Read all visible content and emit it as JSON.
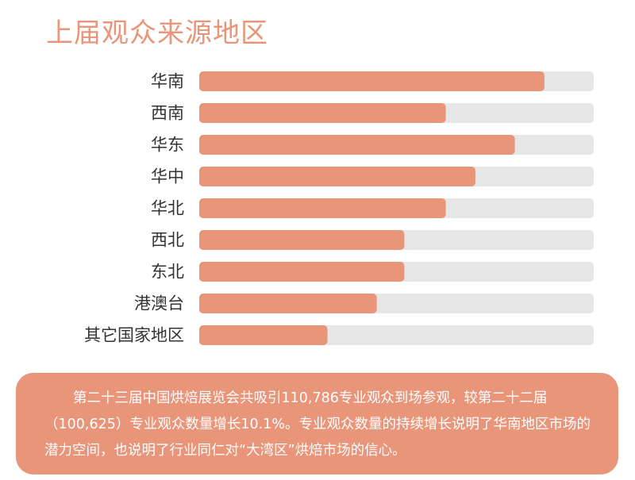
{
  "title": "上届观众来源地区",
  "chart_data": {
    "type": "bar",
    "orientation": "horizontal",
    "categories": [
      "华南",
      "西南",
      "华东",
      "华中",
      "华北",
      "西北",
      "东北",
      "港澳台",
      "其它国家地区"
    ],
    "values": [
      87.5,
      62.5,
      80,
      70,
      62.5,
      52,
      52,
      45,
      32.5
    ],
    "xlim": [
      0,
      100
    ],
    "grid": false,
    "colors": {
      "bar": "#e8957a",
      "track": "#e6e6e6"
    }
  },
  "note": {
    "text": "第二十三届中国烘焙展览会共吸引110,786专业观众到场参观，较第二十二届（100,625）专业观众数量增长10.1%。专业观众数量的持续增长说明了华南地区市场的潜力空间，也说明了行业同仁对“大湾区”烘焙市场的信心。"
  }
}
